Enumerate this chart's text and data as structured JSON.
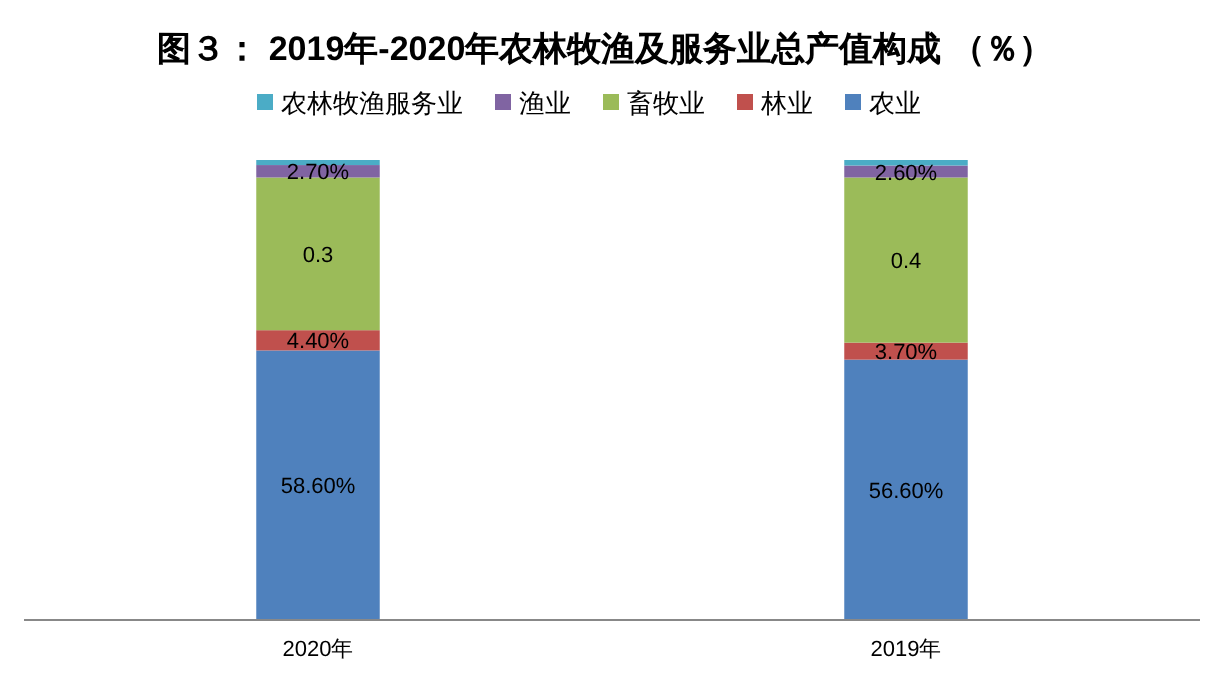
{
  "chart_data": {
    "type": "bar",
    "title": "图３： 2019年-2020年农林牧渔及服务业总产值构成 （％）",
    "categories": [
      "2020年",
      "2019年"
    ],
    "stacked": true,
    "legend": "top",
    "series": [
      {
        "name": "农业",
        "color": "#4f81bd",
        "values": [
          0.586,
          0.566
        ],
        "value_labels": [
          "58.60%",
          "56.60%"
        ]
      },
      {
        "name": "林业",
        "color": "#c0504d",
        "values": [
          0.044,
          0.037
        ],
        "value_labels": [
          "4.40%",
          "3.70%"
        ]
      },
      {
        "name": "畜牧业",
        "color": "#9bbb59",
        "values": [
          0.332,
          0.359
        ],
        "value_labels": [
          "0.3",
          "0.4"
        ]
      },
      {
        "name": "渔业",
        "color": "#8064a2",
        "values": [
          0.027,
          0.026
        ],
        "value_labels": [
          "2.70%",
          "2.60%"
        ]
      },
      {
        "name": "农林牧渔服务业",
        "color": "#4bacc6",
        "values": [
          0.011,
          0.012
        ],
        "value_labels": [
          null,
          null
        ]
      }
    ]
  }
}
